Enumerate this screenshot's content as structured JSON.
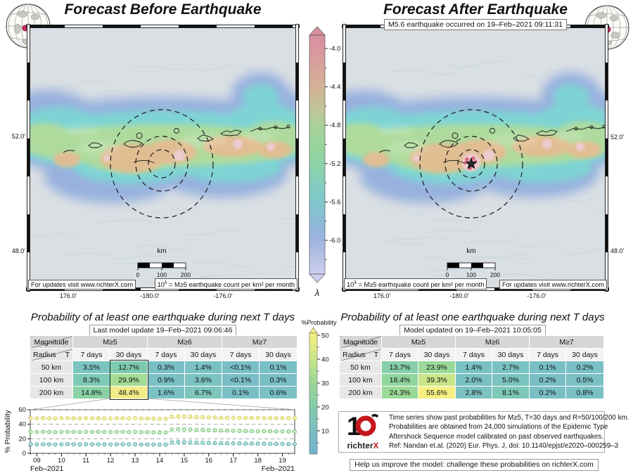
{
  "titles": {
    "left": "Forecast Before Earthquake",
    "right": "Forecast After Earthquake"
  },
  "annotation_right_map": "M5.6 earthquake occurred on 19–Feb–2021 09:11:31",
  "lambda_colorbar": {
    "ticks": [
      "-4.0",
      "-4.4",
      "-4.8",
      "-5.2",
      "-5.6",
      "-6.0"
    ],
    "label": "λ"
  },
  "prob_colorbar": {
    "label": "%Probability",
    "ticks": [
      "50",
      "40",
      "30",
      "20",
      "10"
    ]
  },
  "maps": {
    "left": {
      "lat": [
        "52.0'",
        "48.0'"
      ],
      "lon": [
        "176.0'",
        "-180.0'",
        "-176.0'"
      ],
      "scale_label": "km",
      "scale_ticks": [
        "0",
        "100",
        "200"
      ],
      "box_left": {
        "text": "For updates visit www.richterX.com"
      },
      "box_right": {
        "pre": "10",
        "sup": "λ",
        "post": " = M≥5 earthquake count per km² per month"
      }
    },
    "right": {
      "lat": [
        "52.0'",
        "48.0'"
      ],
      "lon": [
        "176.0'",
        "-180.0'",
        "-176.0'"
      ],
      "scale_label": "km",
      "scale_ticks": [
        "0",
        "100",
        "200"
      ],
      "box_left": {
        "pre": "10",
        "sup": "λ",
        "post": " = M≥5 earthquake count per km² per month"
      },
      "box_right": {
        "text": "For updates visit www.richterX.com"
      }
    }
  },
  "prob_sections": {
    "title_left": "Probability of at least one earthquake during next T days",
    "title_right": "Probability of at least one earthquake during next T days",
    "left_subtitle": "Last model update 19–Feb–2021 09:06:46",
    "right_subtitle": "Model updated on 19–Feb–2021 10:05:05"
  },
  "tables": {
    "header": {
      "corner_top": "Magnitude",
      "corner_left": "Radius",
      "corner_right": "T",
      "mag_groups": [
        "M≥5",
        "M≥6",
        "M≥7"
      ],
      "periods": [
        "7 days",
        "30 days",
        "7 days",
        "30 days",
        "7 days",
        "30 days"
      ]
    },
    "left": {
      "rows": [
        {
          "label": "50 km",
          "cells": [
            {
              "v": "3.5%",
              "c": "#7cc4c0"
            },
            {
              "v": "12.7%",
              "c": "#7ccbae"
            },
            {
              "v": "0.3%",
              "c": "#79bfc5"
            },
            {
              "v": "1.4%",
              "c": "#7ac1c4"
            },
            {
              "v": "<0.1%",
              "c": "#79bec6"
            },
            {
              "v": "0.1%",
              "c": "#79bfc6"
            }
          ]
        },
        {
          "label": "100 km",
          "cells": [
            {
              "v": "8.3%",
              "c": "#7dc9b6"
            },
            {
              "v": "29.9%",
              "c": "#a3dc95"
            },
            {
              "v": "0.9%",
              "c": "#7ac0c5"
            },
            {
              "v": "3.6%",
              "c": "#7bc3c1"
            },
            {
              "v": "<0.1%",
              "c": "#79bec6"
            },
            {
              "v": "0.3%",
              "c": "#79bfc5"
            }
          ]
        },
        {
          "label": "200 km",
          "cells": [
            {
              "v": "14.8%",
              "c": "#89d1a5"
            },
            {
              "v": "48.4%",
              "c": "#f1ec87"
            },
            {
              "v": "1.6%",
              "c": "#7ac1c4"
            },
            {
              "v": "6.7%",
              "c": "#7cc6bb"
            },
            {
              "v": "0.1%",
              "c": "#79bfc6"
            },
            {
              "v": "0.6%",
              "c": "#7ac0c5"
            }
          ]
        }
      ]
    },
    "right": {
      "rows": [
        {
          "label": "50 km",
          "cells": [
            {
              "v": "13.7%",
              "c": "#86cfa9"
            },
            {
              "v": "23.9%",
              "c": "#9ad998"
            },
            {
              "v": "1.4%",
              "c": "#7ac1c4"
            },
            {
              "v": "2.7%",
              "c": "#7ac2c2"
            },
            {
              "v": "0.1%",
              "c": "#79bfc6"
            },
            {
              "v": "0.2%",
              "c": "#79bfc5"
            }
          ]
        },
        {
          "label": "100 km",
          "cells": [
            {
              "v": "18.4%",
              "c": "#91d59e"
            },
            {
              "v": "39.3%",
              "c": "#c9e689"
            },
            {
              "v": "2.0%",
              "c": "#7ac1c3"
            },
            {
              "v": "5.0%",
              "c": "#7bc4bf"
            },
            {
              "v": "0.2%",
              "c": "#79bfc5"
            },
            {
              "v": "0.5%",
              "c": "#7ac0c5"
            }
          ]
        },
        {
          "label": "200 km",
          "cells": [
            {
              "v": "24.3%",
              "c": "#9bd997"
            },
            {
              "v": "55.6%",
              "c": "#f6f082"
            },
            {
              "v": "2.8%",
              "c": "#7bc2c1"
            },
            {
              "v": "8.1%",
              "c": "#7dc8b8"
            },
            {
              "v": "0.2%",
              "c": "#79bfc5"
            },
            {
              "v": "0.8%",
              "c": "#7ac1c4"
            }
          ]
        }
      ]
    }
  },
  "chart_data": {
    "type": "line",
    "title": "Past probabilities time series",
    "ylabel": "% Probability",
    "xlabel_left": "Feb–2021",
    "xlabel_right": "Feb–2021",
    "ylim": [
      0,
      60
    ],
    "yticks": [
      0,
      20,
      40,
      60
    ],
    "x_start": 8.75,
    "x_step": 0.25,
    "x_count": 44,
    "x_major_ticks": [
      9,
      10,
      11,
      12,
      13,
      14,
      15,
      16,
      17,
      18,
      19
    ],
    "x_tick_labels": [
      "09",
      "10",
      "11",
      "12",
      "13",
      "14",
      "15",
      "16",
      "17",
      "18",
      "19"
    ],
    "event_x": 14.4,
    "grid": true,
    "series": [
      {
        "name": "M≥5, T=30 days, R=200 km",
        "color": "#d6cf5d",
        "fill": "#f6f2b5",
        "baseline": 48.2,
        "values": [
          48.3,
          48.1,
          48.4,
          48.2,
          48.0,
          48.3,
          48.5,
          48.2,
          48.1,
          48.4,
          48.2,
          48.3,
          48.1,
          48.0,
          48.2,
          48.4,
          48.1,
          48.3,
          48.0,
          47.8,
          47.6,
          47.5,
          47.4,
          50.5,
          50.8,
          50.6,
          50.3,
          50.0,
          49.7,
          49.5,
          49.3,
          49.1,
          49.0,
          48.9,
          48.8,
          48.8,
          48.7,
          48.7,
          48.6,
          48.6,
          48.5,
          48.5,
          48.4,
          48.4
        ]
      },
      {
        "name": "M≥5, T=30 days, R=100 km",
        "color": "#74c478",
        "fill": "#d8eed2",
        "baseline": 29.4,
        "values": [
          29.5,
          29.3,
          29.6,
          29.4,
          29.2,
          29.5,
          29.7,
          29.4,
          29.3,
          29.6,
          29.4,
          29.5,
          29.3,
          29.2,
          29.4,
          29.6,
          29.3,
          29.5,
          29.2,
          29.0,
          28.8,
          28.7,
          28.6,
          33.0,
          33.3,
          33.1,
          32.8,
          32.5,
          32.2,
          31.9,
          31.7,
          31.5,
          31.3,
          31.1,
          31.0,
          30.8,
          30.7,
          30.6,
          30.5,
          30.4,
          30.2,
          30.1,
          30.0,
          29.9
        ]
      },
      {
        "name": "M≥5, T=30 days, R=50 km",
        "color": "#52aea6",
        "fill": "#c6e5e1",
        "baseline": 12.4,
        "values": [
          12.4,
          12.3,
          12.5,
          12.4,
          12.2,
          12.4,
          12.6,
          12.4,
          12.3,
          12.5,
          12.4,
          12.4,
          12.3,
          12.2,
          12.4,
          12.5,
          12.3,
          12.4,
          12.2,
          12.1,
          12.0,
          11.9,
          11.9,
          15.2,
          15.5,
          15.3,
          15.0,
          14.8,
          14.6,
          14.4,
          14.2,
          14.1,
          13.9,
          13.8,
          13.7,
          13.6,
          13.5,
          13.4,
          13.3,
          13.2,
          13.1,
          13.0,
          12.8,
          12.7
        ]
      }
    ]
  },
  "footer": {
    "logo_black": "richter",
    "logo_red": "X",
    "logo_red_hex": "#c4161c",
    "lines": [
      "Time series show past probabilities for M≥5, T=30 days and R=50/100/200 km.",
      "Probabilities are obtained from 24,000 simulations of the Epidemic Type",
      "Aftershock Sequence model calibrated on past observed earthquakes.",
      "Ref: Nandan et.al. (2020) Eur. Phys. J, doi: 10.1140/epjst/e2020–000259–3"
    ],
    "help": "Help us improve the model: challenge these probabilities on richterX.com"
  }
}
